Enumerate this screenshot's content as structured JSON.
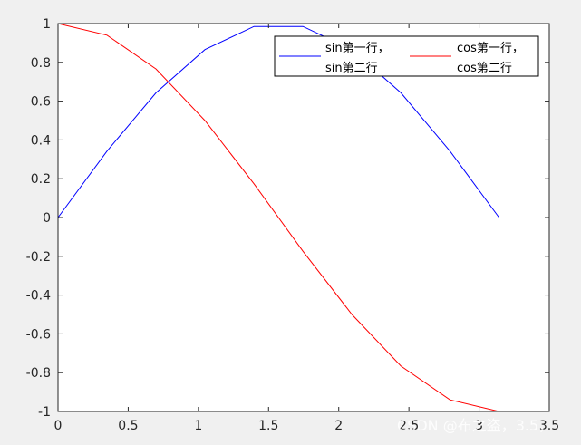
{
  "chart_data": {
    "type": "line",
    "xlim": [
      0,
      3.5
    ],
    "ylim": [
      -1,
      1
    ],
    "x_ticks": [
      "0",
      "0.5",
      "1",
      "1.5",
      "2",
      "2.5",
      "3",
      "3.5"
    ],
    "y_ticks": [
      "1",
      "0.8",
      "0.6",
      "0.4",
      "0.2",
      "0",
      "-0.2",
      "-0.4",
      "-0.6",
      "-0.8",
      "-1"
    ],
    "x_tick_values": [
      0,
      0.5,
      1,
      1.5,
      2,
      2.5,
      3,
      3.5
    ],
    "y_tick_values": [
      1,
      0.8,
      0.6,
      0.4,
      0.2,
      0,
      -0.2,
      -0.4,
      -0.6,
      -0.8,
      -1
    ],
    "grid": false,
    "legend_position": "top-right",
    "series": [
      {
        "name": "sin第一行，",
        "name_line2": "sin第二行",
        "color": "#0000ff",
        "x": [
          0,
          0.349,
          0.698,
          1.047,
          1.396,
          1.745,
          2.094,
          2.443,
          2.793,
          3.142
        ],
        "y": [
          0,
          0.342,
          0.643,
          0.866,
          0.985,
          0.985,
          0.866,
          0.643,
          0.342,
          0
        ]
      },
      {
        "name": "cos第一行，",
        "name_line2": "cos第二行",
        "color": "#ff0000",
        "x": [
          0,
          0.349,
          0.698,
          1.047,
          1.396,
          1.745,
          2.094,
          2.443,
          2.793,
          3.142
        ],
        "y": [
          1,
          0.94,
          0.766,
          0.5,
          0.174,
          -0.174,
          -0.5,
          -0.766,
          -0.94,
          -1
        ]
      }
    ]
  },
  "watermark": "CSDN @布之盗，3.5，"
}
